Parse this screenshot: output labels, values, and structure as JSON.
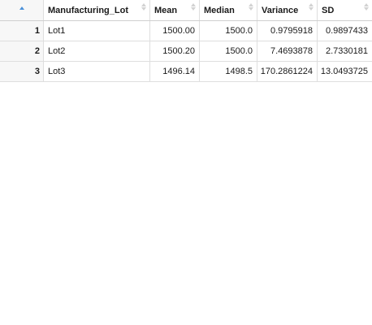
{
  "table": {
    "columns": [
      "Manufacturing_Lot",
      "Mean",
      "Median",
      "Variance",
      "SD"
    ],
    "rows": [
      {
        "index": "1",
        "lot": "Lot1",
        "mean": "1500.00",
        "median": "1500.0",
        "variance": "0.9795918",
        "sd": "0.9897433"
      },
      {
        "index": "2",
        "lot": "Lot2",
        "mean": "1500.20",
        "median": "1500.0",
        "variance": "7.4693878",
        "sd": "2.7330181"
      },
      {
        "index": "3",
        "lot": "Lot3",
        "mean": "1496.14",
        "median": "1498.5",
        "variance": "170.2861224",
        "sd": "13.0493725"
      }
    ]
  },
  "colors": {
    "sort_active": "#4a90d9",
    "sort_inactive": "#d2d2d2",
    "row_header_bg": "#f7f7f7",
    "border": "#dedede"
  }
}
